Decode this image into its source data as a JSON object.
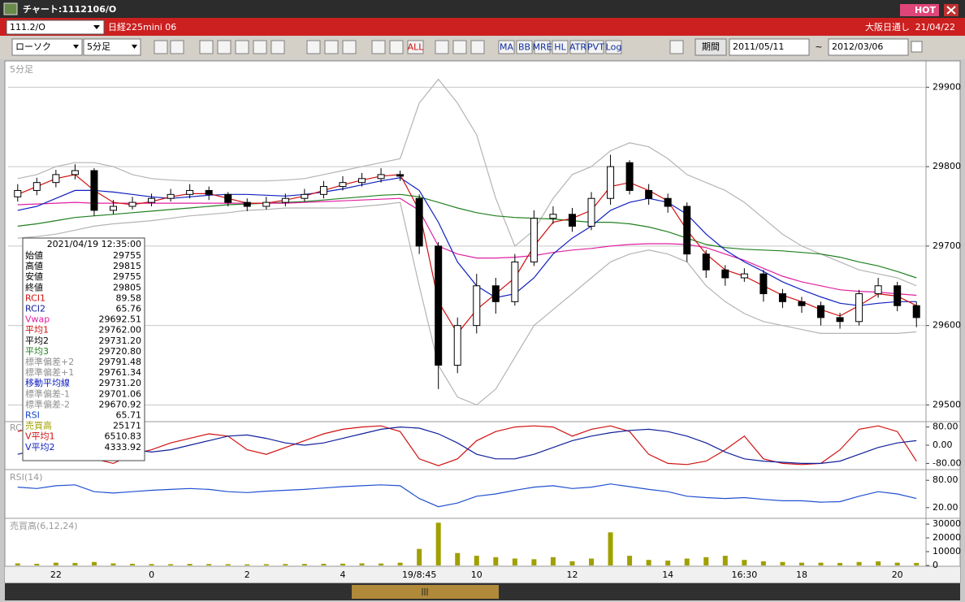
{
  "window": {
    "title": "チャート:1112106/O",
    "hot": "HOT",
    "symbol": "111.2/O",
    "instrument": "日経225mini 06",
    "session": "大阪日通し",
    "date": "21/04/22"
  },
  "toolbar": {
    "chart_style": "ローソク",
    "interval": "5分足",
    "icons": [
      "ALL",
      "MA",
      "BB",
      "MRE",
      "HL",
      "ATR",
      "PVT",
      "Log"
    ],
    "period_button": "期間",
    "start_date": "2011/05/11",
    "separator": "~",
    "end_date": "2012/03/06"
  },
  "info_panel": {
    "timestamp": "2021/04/19 12:35:00",
    "rows": [
      {
        "label": "始値",
        "value": "29755",
        "color": "#000000"
      },
      {
        "label": "高値",
        "value": "29815",
        "color": "#000000"
      },
      {
        "label": "安値",
        "value": "29755",
        "color": "#000000"
      },
      {
        "label": "終値",
        "value": "29805",
        "color": "#000000"
      },
      {
        "label": "RCI1",
        "value": "89.58",
        "color": "#d01010"
      },
      {
        "label": "RCI2",
        "value": "65.76",
        "color": "#1020a0"
      },
      {
        "label": "Vwap",
        "value": "29692.51",
        "color": "#e020a0"
      },
      {
        "label": "平均1",
        "value": "29762.00",
        "color": "#d01010"
      },
      {
        "label": "平均2",
        "value": "29731.20",
        "color": "#000000"
      },
      {
        "label": "平均3",
        "value": "29720.80",
        "color": "#208020"
      },
      {
        "label": "標準偏差+2",
        "value": "29791.48",
        "color": "#909090"
      },
      {
        "label": "標準偏差+1",
        "value": "29761.34",
        "color": "#909090"
      },
      {
        "label": "移動平均線",
        "value": "29731.20",
        "color": "#1020c0"
      },
      {
        "label": "標準偏差-1",
        "value": "29701.06",
        "color": "#909090"
      },
      {
        "label": "標準偏差-2",
        "value": "29670.92",
        "color": "#909090"
      },
      {
        "label": "RSI",
        "value": "65.71",
        "color": "#1040d0"
      },
      {
        "label": "売買高",
        "value": "25171",
        "color": "#a0a000"
      },
      {
        "label": "V平均1",
        "value": "6510.83",
        "color": "#d01010"
      },
      {
        "label": "V平均2",
        "value": "4333.92",
        "color": "#1020c0"
      }
    ]
  },
  "chart_data": [
    {
      "type": "candlestick",
      "title": "5分足",
      "ylim": [
        29480,
        29930
      ],
      "yticks": [
        29500,
        29600,
        29700,
        29800,
        29900
      ],
      "grid": true,
      "open": [
        29762,
        29770,
        29780,
        29790,
        29795,
        29745,
        29750,
        29755,
        29760,
        29765,
        29770,
        29765,
        29755,
        29750,
        29755,
        29760,
        29765,
        29775,
        29780,
        29785,
        29790,
        29760,
        29700,
        29550,
        29600,
        29650,
        29630,
        29680,
        29735,
        29740,
        29725,
        29760,
        29805,
        29770,
        29760,
        29750,
        29690,
        29670,
        29660,
        29665,
        29640,
        29630,
        29625,
        29610,
        29605,
        29640,
        29650,
        29625
      ],
      "high": [
        29778,
        29786,
        29796,
        29803,
        29798,
        29758,
        29762,
        29766,
        29772,
        29778,
        29775,
        29768,
        29760,
        29762,
        29766,
        29772,
        29782,
        29788,
        29792,
        29798,
        29795,
        29765,
        29705,
        29610,
        29665,
        29660,
        29690,
        29745,
        29750,
        29748,
        29768,
        29815,
        29808,
        29778,
        29766,
        29755,
        29695,
        29676,
        29672,
        29670,
        29646,
        29636,
        29630,
        29616,
        29645,
        29660,
        29655,
        29630
      ],
      "low": [
        29756,
        29764,
        29774,
        29784,
        29738,
        29740,
        29746,
        29750,
        29756,
        29760,
        29758,
        29750,
        29744,
        29746,
        29750,
        29756,
        29760,
        29770,
        29775,
        29780,
        29782,
        29690,
        29520,
        29540,
        29590,
        29615,
        29625,
        29675,
        29728,
        29718,
        29720,
        29752,
        29765,
        29752,
        29742,
        29680,
        29660,
        29650,
        29655,
        29630,
        29622,
        29616,
        29600,
        29596,
        29600,
        29635,
        29618,
        29598
      ],
      "close": [
        29770,
        29780,
        29790,
        29795,
        29745,
        29750,
        29755,
        29760,
        29765,
        29770,
        29765,
        29755,
        29750,
        29755,
        29760,
        29765,
        29775,
        29780,
        29785,
        29790,
        29788,
        29700,
        29550,
        29600,
        29650,
        29630,
        29680,
        29735,
        29740,
        29725,
        29760,
        29800,
        29770,
        29760,
        29750,
        29690,
        29670,
        29660,
        29665,
        29640,
        29630,
        29625,
        29610,
        29605,
        29640,
        29650,
        29625,
        29610
      ],
      "series": [
        {
          "color": "#b4b4b4",
          "values": [
            29785,
            29790,
            29800,
            29805,
            29805,
            29800,
            29790,
            29785,
            29783,
            29782,
            29782,
            29782,
            29782,
            29782,
            29783,
            29785,
            29790,
            29795,
            29800,
            29805,
            29810,
            29880,
            29910,
            29880,
            29840,
            29760,
            29700,
            29720,
            29760,
            29790,
            29800,
            29820,
            29830,
            29825,
            29810,
            29790,
            29780,
            29770,
            29755,
            29735,
            29715,
            29700,
            29690,
            29680,
            29670,
            29665,
            29660,
            29650
          ]
        },
        {
          "color": "#b4b4b4",
          "values": [
            29710,
            29712,
            29715,
            29720,
            29725,
            29728,
            29730,
            29732,
            29735,
            29738,
            29740,
            29742,
            29745,
            29746,
            29748,
            29748,
            29748,
            29748,
            29750,
            29752,
            29755,
            29650,
            29550,
            29510,
            29500,
            29520,
            29560,
            29600,
            29620,
            29640,
            29660,
            29680,
            29690,
            29695,
            29690,
            29680,
            29650,
            29630,
            29615,
            29605,
            29600,
            29595,
            29590,
            29590,
            29590,
            29590,
            29590,
            29592
          ]
        },
        {
          "color": "#208020",
          "values": [
            29725,
            29728,
            29732,
            29736,
            29738,
            29740,
            29742,
            29744,
            29746,
            29748,
            29750,
            29752,
            29753,
            29754,
            29755,
            29756,
            29758,
            29760,
            29762,
            29764,
            29765,
            29762,
            29755,
            29748,
            29742,
            29738,
            29736,
            29735,
            29734,
            29732,
            29730,
            29730,
            29728,
            29724,
            29718,
            29710,
            29702,
            29698,
            29696,
            29695,
            29694,
            29692,
            29690,
            29686,
            29680,
            29675,
            29668,
            29660
          ]
        },
        {
          "color": "#e020a0",
          "values": [
            29752,
            29753,
            29754,
            29755,
            29754,
            29754,
            29754,
            29754,
            29754,
            29754,
            29754,
            29754,
            29754,
            29754,
            29754,
            29755,
            29756,
            29757,
            29758,
            29759,
            29760,
            29745,
            29700,
            29690,
            29685,
            29685,
            29686,
            29688,
            29692,
            29695,
            29697,
            29700,
            29702,
            29703,
            29703,
            29702,
            29698,
            29690,
            29682,
            29672,
            29662,
            29655,
            29650,
            29645,
            29643,
            29642,
            29640,
            29638
          ]
        },
        {
          "color": "#1020c0",
          "values": [
            29745,
            29750,
            29760,
            29770,
            29770,
            29768,
            29765,
            29762,
            29760,
            29762,
            29764,
            29765,
            29765,
            29764,
            29763,
            29765,
            29768,
            29772,
            29777,
            29782,
            29786,
            29770,
            29730,
            29680,
            29650,
            29635,
            29640,
            29660,
            29690,
            29710,
            29725,
            29745,
            29755,
            29760,
            29755,
            29740,
            29715,
            29695,
            29680,
            29668,
            29655,
            29645,
            29636,
            29628,
            29625,
            29628,
            29630,
            29630
          ]
        },
        {
          "color": "#d01010",
          "values": [
            29765,
            29775,
            29785,
            29790,
            29770,
            29755,
            29752,
            29756,
            29762,
            29766,
            29766,
            29760,
            29754,
            29754,
            29758,
            29763,
            29770,
            29777,
            29783,
            29788,
            29790,
            29745,
            29630,
            29590,
            29620,
            29640,
            29660,
            29700,
            29730,
            29735,
            29745,
            29775,
            29780,
            29770,
            29757,
            29720,
            29690,
            29670,
            29662,
            29650,
            29638,
            29630,
            29620,
            29612,
            29625,
            29640,
            29637,
            29625
          ]
        }
      ]
    },
    {
      "type": "line",
      "title": "RCI",
      "ylim": [
        -100,
        100
      ],
      "yticks": [
        {
          "value": 80,
          "label": "80.00"
        },
        {
          "value": 0,
          "label": "0.00"
        },
        {
          "value": -80,
          "label": "-80.00"
        }
      ],
      "series": [
        {
          "color": "#d01010",
          "values": [
            60,
            80,
            85,
            70,
            -60,
            -80,
            -40,
            -20,
            10,
            30,
            50,
            40,
            -20,
            -40,
            -10,
            20,
            50,
            70,
            80,
            85,
            60,
            -60,
            -90,
            -60,
            20,
            60,
            80,
            85,
            80,
            40,
            70,
            85,
            60,
            -40,
            -80,
            -85,
            -70,
            -20,
            40,
            -60,
            -80,
            -85,
            -80,
            -20,
            70,
            85,
            60,
            -70
          ]
        },
        {
          "color": "#10209a",
          "values": [
            -40,
            -20,
            10,
            30,
            20,
            0,
            -20,
            -30,
            -20,
            0,
            20,
            40,
            45,
            30,
            10,
            0,
            10,
            30,
            50,
            70,
            80,
            75,
            50,
            10,
            -40,
            -60,
            -60,
            -40,
            -10,
            20,
            40,
            55,
            65,
            70,
            60,
            40,
            10,
            -30,
            -60,
            -70,
            -75,
            -80,
            -80,
            -70,
            -40,
            -10,
            10,
            20
          ]
        }
      ]
    },
    {
      "type": "line",
      "title": "RSI(14)",
      "ylim": [
        0,
        100
      ],
      "yticks": [
        {
          "value": 80,
          "label": "80.00"
        },
        {
          "value": 20,
          "label": "20.00"
        }
      ],
      "series": [
        {
          "color": "#2050d0",
          "values": [
            65,
            62,
            68,
            70,
            55,
            52,
            55,
            58,
            60,
            62,
            60,
            55,
            53,
            56,
            58,
            60,
            63,
            66,
            68,
            70,
            68,
            40,
            22,
            30,
            45,
            50,
            58,
            65,
            68,
            62,
            65,
            72,
            66,
            60,
            55,
            45,
            42,
            40,
            42,
            38,
            35,
            35,
            32,
            33,
            45,
            55,
            50,
            40
          ]
        }
      ]
    },
    {
      "type": "bar",
      "title": "売買高(6,12,24)",
      "color": "#a0a000",
      "ylim": [
        0,
        33000
      ],
      "yticks": [
        0,
        10000,
        20000,
        30000
      ],
      "values": [
        1500,
        1200,
        2000,
        1800,
        2500,
        1500,
        1200,
        1000,
        900,
        1100,
        1000,
        900,
        800,
        900,
        1000,
        1100,
        1200,
        1300,
        1500,
        1400,
        2000,
        12000,
        31000,
        9000,
        7000,
        6000,
        5000,
        4500,
        6000,
        3000,
        5000,
        24000,
        7000,
        4000,
        3500,
        5000,
        6000,
        7000,
        4000,
        3000,
        2500,
        2000,
        2000,
        1800,
        2500,
        3000,
        2000,
        1800
      ],
      "categories": [
        null,
        null,
        "22",
        null,
        null,
        null,
        null,
        "0",
        null,
        null,
        null,
        null,
        "2",
        null,
        null,
        null,
        null,
        "4",
        null,
        null,
        null,
        "19/8:45",
        null,
        null,
        "10",
        null,
        null,
        null,
        null,
        "12",
        null,
        null,
        null,
        null,
        "14",
        null,
        null,
        null,
        "16:30",
        null,
        null,
        "18",
        null,
        null,
        null,
        null,
        "20",
        null
      ]
    }
  ]
}
